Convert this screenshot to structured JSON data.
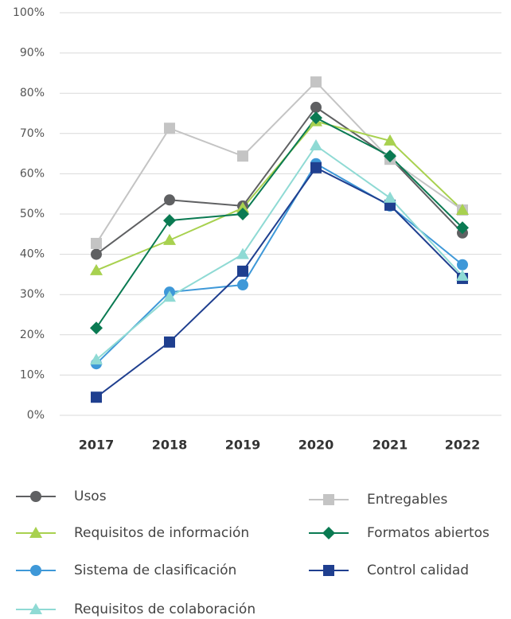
{
  "chart_data": {
    "type": "line",
    "categories": [
      "2017",
      "2018",
      "2019",
      "2020",
      "2021",
      "2022"
    ],
    "ylim": [
      0,
      100
    ],
    "yticks": [
      {
        "value": 0,
        "label": "0%"
      },
      {
        "value": 10,
        "label": "10%"
      },
      {
        "value": 20,
        "label": "20%"
      },
      {
        "value": 30,
        "label": "30%"
      },
      {
        "value": 40,
        "label": "40%"
      },
      {
        "value": 50,
        "label": "50%"
      },
      {
        "value": 60,
        "label": "60%"
      },
      {
        "value": 70,
        "label": "70%"
      },
      {
        "value": 80,
        "label": "80%"
      },
      {
        "value": 90,
        "label": "90%"
      },
      {
        "value": 100,
        "label": "100%"
      }
    ],
    "grid": true,
    "series": [
      {
        "name": "Usos",
        "color": "#5f6062",
        "marker": "circle",
        "values": [
          40,
          53.5,
          52,
          76.5,
          64,
          45.3
        ]
      },
      {
        "name": "Entregables",
        "color": "#c4c4c4",
        "marker": "square",
        "values": [
          42.7,
          71.3,
          64.4,
          82.8,
          63.6,
          51
        ]
      },
      {
        "name": "Requisitos de información",
        "color": "#a8d14f",
        "marker": "triangle",
        "values": [
          36,
          43.5,
          51.5,
          73,
          68.2,
          51
        ]
      },
      {
        "name": "Formatos abiertos",
        "color": "#0a7a52",
        "marker": "diamond",
        "values": [
          21.7,
          48.4,
          50,
          73.9,
          64.4,
          46.6
        ]
      },
      {
        "name": "Sistema de clasificación",
        "color": "#3e98d8",
        "marker": "circle",
        "values": [
          12.8,
          30.6,
          32.4,
          62.5,
          52,
          37.4
        ]
      },
      {
        "name": "Control calidad",
        "color": "#1f3f8f",
        "marker": "square",
        "values": [
          4.5,
          18.2,
          35.8,
          61.5,
          52.2,
          34
        ]
      },
      {
        "name": "Requisitos de colaboración",
        "color": "#8fdad4",
        "marker": "triangle",
        "values": [
          13.8,
          29.4,
          40,
          67,
          54,
          34.6
        ]
      }
    ]
  }
}
